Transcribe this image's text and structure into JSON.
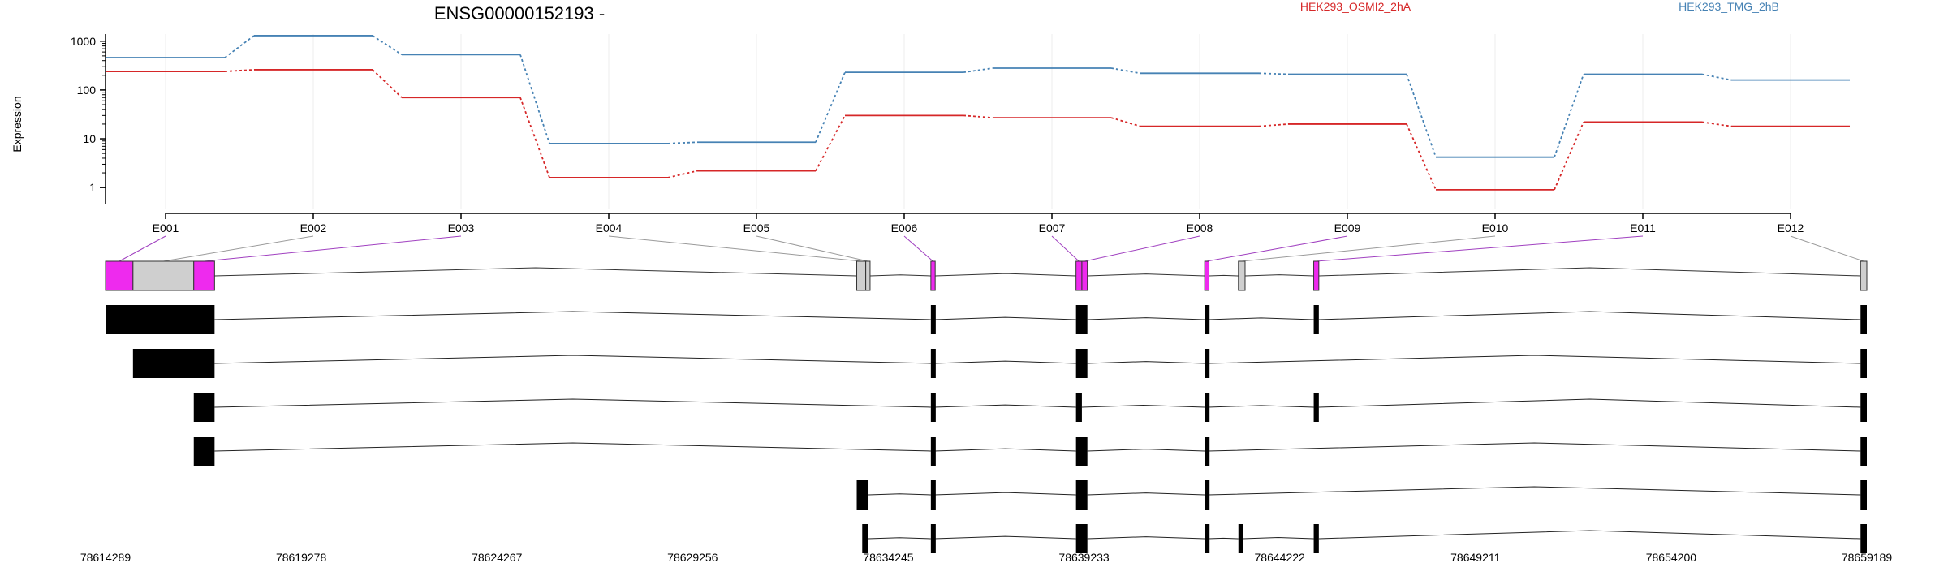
{
  "chart_data": {
    "type": "line",
    "title": "ENSG00000152193 -",
    "ylabel": "Expression",
    "yscale": "log",
    "ylim": [
      0.45,
      1400
    ],
    "yticks": [
      1,
      10,
      100,
      1000
    ],
    "ytick_labels": [
      "1",
      "10",
      "100",
      "1000"
    ],
    "categories": [
      "E001",
      "E002",
      "E003",
      "E004",
      "E005",
      "E006",
      "E007",
      "E008",
      "E009",
      "E010",
      "E011",
      "E012"
    ],
    "series": [
      {
        "name": "HEK293_OSMI2_2hA",
        "color": "#d62728",
        "values": [
          240,
          260,
          70,
          1.6,
          2.2,
          30,
          27,
          18,
          20,
          0.9,
          22,
          18
        ]
      },
      {
        "name": "HEK293_TMG_2hB",
        "color": "#4682b4",
        "values": [
          460,
          1300,
          530,
          8,
          8.5,
          230,
          280,
          220,
          210,
          4.2,
          210,
          160
        ]
      }
    ],
    "genome": {
      "start": 78614289,
      "end": 78659189,
      "tick_labels": [
        "78614289",
        "78619278",
        "78624267",
        "78629256",
        "78634245",
        "78639233",
        "78644222",
        "78649211",
        "78654200",
        "78659189"
      ],
      "exon_bins": [
        {
          "id": "E001",
          "start": 78614289,
          "end": 78614989,
          "highlight": true
        },
        {
          "id": "E002",
          "start": 78614989,
          "end": 78616539,
          "highlight": false
        },
        {
          "id": "E003",
          "start": 78616539,
          "end": 78617069,
          "highlight": true
        },
        {
          "id": "E004",
          "start": 78633439,
          "end": 78633669,
          "highlight": false
        },
        {
          "id": "E005",
          "start": 78633669,
          "end": 78633779,
          "highlight": false
        },
        {
          "id": "E006",
          "start": 78635329,
          "end": 78635439,
          "highlight": true
        },
        {
          "id": "E007",
          "start": 78639029,
          "end": 78639179,
          "highlight": true
        },
        {
          "id": "E008",
          "start": 78639179,
          "end": 78639319,
          "highlight": true
        },
        {
          "id": "E009",
          "start": 78642309,
          "end": 78642419,
          "highlight": true
        },
        {
          "id": "E010",
          "start": 78643169,
          "end": 78643339,
          "highlight": false
        },
        {
          "id": "E011",
          "start": 78645089,
          "end": 78645219,
          "highlight": true
        },
        {
          "id": "E012",
          "start": 78659029,
          "end": 78659189,
          "highlight": false
        }
      ],
      "transcripts": [
        [
          [
            78614289,
            78617069
          ],
          [
            78635329,
            78635419
          ],
          [
            78639029,
            78639319
          ],
          [
            78642309,
            78642399
          ],
          [
            78645089,
            78645219
          ],
          [
            78659029,
            78659189
          ]
        ],
        [
          [
            78614989,
            78617069
          ],
          [
            78635329,
            78635419
          ],
          [
            78639029,
            78639319
          ],
          [
            78642309,
            78642399
          ],
          [
            78659029,
            78659189
          ]
        ],
        [
          [
            78616539,
            78617069
          ],
          [
            78635329,
            78635419
          ],
          [
            78639029,
            78639179
          ],
          [
            78642309,
            78642399
          ],
          [
            78645089,
            78645219
          ],
          [
            78659029,
            78659189
          ]
        ],
        [
          [
            78616539,
            78617069
          ],
          [
            78635329,
            78635419
          ],
          [
            78639029,
            78639319
          ],
          [
            78642309,
            78642399
          ],
          [
            78659029,
            78659189
          ]
        ],
        [
          [
            78633439,
            78633739
          ],
          [
            78635329,
            78635419
          ],
          [
            78639029,
            78639319
          ],
          [
            78642309,
            78642399
          ],
          [
            78659029,
            78659189
          ]
        ],
        [
          [
            78633579,
            78633729
          ],
          [
            78635329,
            78635419
          ],
          [
            78639029,
            78639319
          ],
          [
            78642309,
            78642399
          ],
          [
            78643169,
            78643279
          ],
          [
            78645089,
            78645219
          ],
          [
            78659029,
            78659189
          ]
        ]
      ]
    },
    "colors": {
      "highlight_exon": "#ee2aee",
      "plain_exon": "#cfcfcf",
      "transcript_exon": "#000000",
      "connector_highlight": "#a040c0",
      "connector_plain": "#9a9a9a",
      "grid": "#ececec"
    }
  }
}
